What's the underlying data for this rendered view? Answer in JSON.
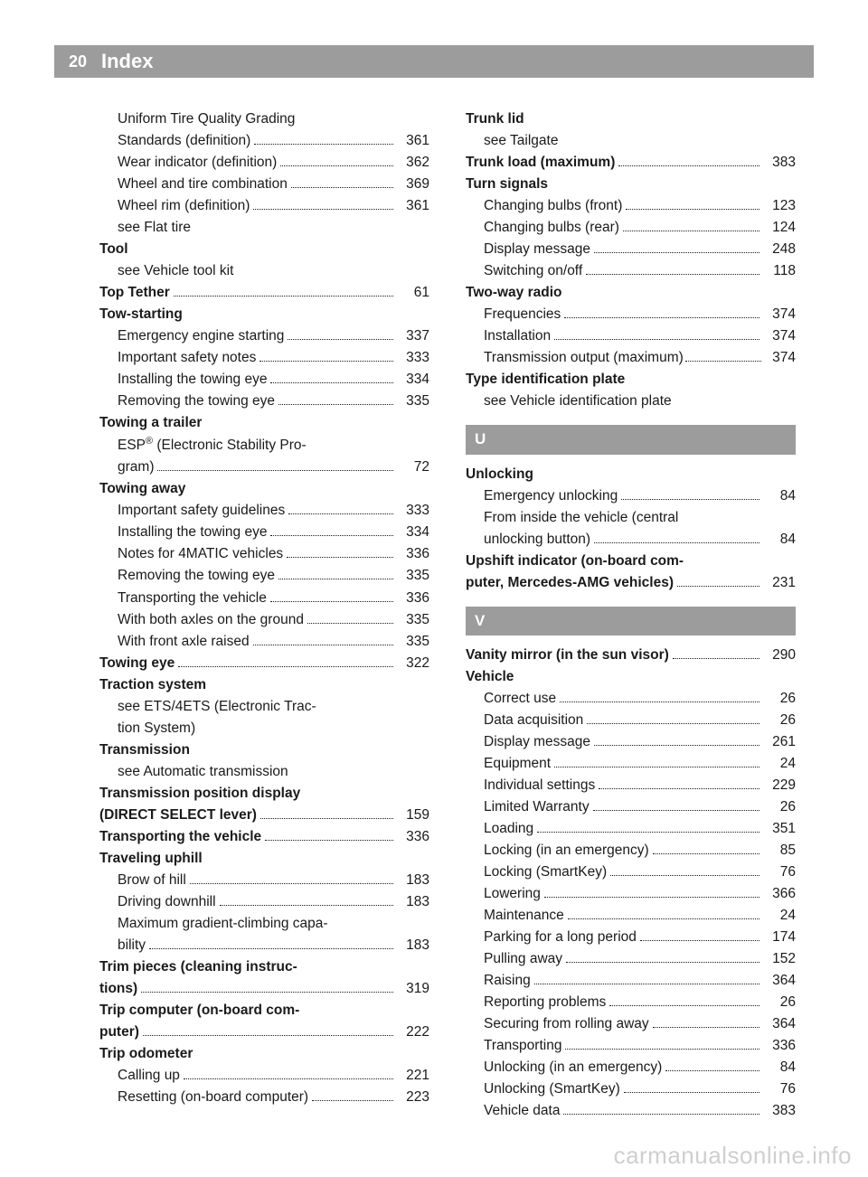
{
  "header": {
    "page_number": "20",
    "title": "Index"
  },
  "watermark": "carmanualsonline.info",
  "left": [
    {
      "label": "Uniform Tire Quality Grading",
      "sub": true,
      "nolead": true
    },
    {
      "label": "Standards (definition)",
      "page": "361",
      "sub": true
    },
    {
      "label": "Wear indicator (definition)",
      "page": "362",
      "sub": true
    },
    {
      "label": "Wheel and tire combination",
      "page": "369",
      "sub": true
    },
    {
      "label": "Wheel rim (definition)",
      "page": "361",
      "sub": true
    },
    {
      "label": "see Flat tire",
      "sub": true,
      "nolead": true
    },
    {
      "label": "Tool",
      "bold": true,
      "nolead": true
    },
    {
      "label": "see Vehicle tool kit",
      "sub": true,
      "nolead": true
    },
    {
      "label": "Top Tether",
      "bold": true,
      "page": "61"
    },
    {
      "label": "Tow-starting",
      "bold": true,
      "nolead": true
    },
    {
      "label": "Emergency engine starting",
      "page": "337",
      "sub": true
    },
    {
      "label": "Important safety notes",
      "page": "333",
      "sub": true
    },
    {
      "label": "Installing the towing eye",
      "page": "334",
      "sub": true
    },
    {
      "label": "Removing the towing eye",
      "page": "335",
      "sub": true
    },
    {
      "label": "Towing a trailer",
      "bold": true,
      "nolead": true
    },
    {
      "label": "ESP® (Electronic Stability Pro-",
      "sub": true,
      "nolead": true,
      "html": true
    },
    {
      "label": "gram)",
      "page": "72",
      "sub": true
    },
    {
      "label": "Towing away",
      "bold": true,
      "nolead": true
    },
    {
      "label": "Important safety guidelines",
      "page": "333",
      "sub": true
    },
    {
      "label": "Installing the towing eye",
      "page": "334",
      "sub": true
    },
    {
      "label": "Notes for 4MATIC vehicles",
      "page": "336",
      "sub": true
    },
    {
      "label": "Removing the towing eye",
      "page": "335",
      "sub": true
    },
    {
      "label": "Transporting the vehicle",
      "page": "336",
      "sub": true
    },
    {
      "label": "With both axles on the ground",
      "page": "335",
      "sub": true
    },
    {
      "label": "With front axle raised",
      "page": "335",
      "sub": true
    },
    {
      "label": "Towing eye",
      "bold": true,
      "page": "322"
    },
    {
      "label": "Traction system",
      "bold": true,
      "nolead": true
    },
    {
      "label": "see ETS/4ETS (Electronic Trac-",
      "sub": true,
      "nolead": true
    },
    {
      "label": "tion System)",
      "sub": true,
      "nolead": true
    },
    {
      "label": "Transmission",
      "bold": true,
      "nolead": true
    },
    {
      "label": "see Automatic transmission",
      "sub": true,
      "nolead": true
    },
    {
      "label": "Transmission position display",
      "bold": true,
      "nolead": true
    },
    {
      "label": "(DIRECT SELECT lever)",
      "bold": true,
      "page": "159"
    },
    {
      "label": "Transporting the vehicle",
      "bold": true,
      "page": "336"
    },
    {
      "label": "Traveling uphill",
      "bold": true,
      "nolead": true
    },
    {
      "label": "Brow of hill",
      "page": "183",
      "sub": true
    },
    {
      "label": "Driving downhill",
      "page": "183",
      "sub": true
    },
    {
      "label": "Maximum gradient-climbing capa-",
      "sub": true,
      "nolead": true
    },
    {
      "label": "bility",
      "page": "183",
      "sub": true
    },
    {
      "label": "Trim pieces (cleaning instruc-",
      "bold": true,
      "nolead": true
    },
    {
      "label": "tions)",
      "bold": true,
      "page": "319"
    },
    {
      "label": "Trip computer (on-board com-",
      "bold": true,
      "nolead": true
    },
    {
      "label": "puter)",
      "bold": true,
      "page": "222"
    },
    {
      "label": "Trip odometer",
      "bold": true,
      "nolead": true
    },
    {
      "label": "Calling up",
      "page": "221",
      "sub": true
    },
    {
      "label": "Resetting (on-board computer)",
      "page": "223",
      "sub": true
    }
  ],
  "right": [
    {
      "label": "Trunk lid",
      "bold": true,
      "nolead": true
    },
    {
      "label": "see Tailgate",
      "sub": true,
      "nolead": true
    },
    {
      "label": "Trunk load (maximum)",
      "bold": true,
      "page": "383"
    },
    {
      "label": "Turn signals",
      "bold": true,
      "nolead": true
    },
    {
      "label": "Changing bulbs (front)",
      "page": "123",
      "sub": true
    },
    {
      "label": "Changing bulbs (rear)",
      "page": "124",
      "sub": true
    },
    {
      "label": "Display message",
      "page": "248",
      "sub": true
    },
    {
      "label": "Switching on/off",
      "page": "118",
      "sub": true
    },
    {
      "label": "Two-way radio",
      "bold": true,
      "nolead": true
    },
    {
      "label": "Frequencies",
      "page": "374",
      "sub": true
    },
    {
      "label": "Installation",
      "page": "374",
      "sub": true
    },
    {
      "label": "Transmission output (maximum)",
      "page": "374",
      "sub": true,
      "tight": true
    },
    {
      "label": "Type identification plate",
      "bold": true,
      "nolead": true
    },
    {
      "label": "see Vehicle identification plate",
      "sub": true,
      "nolead": true
    },
    {
      "section": "U"
    },
    {
      "label": "Unlocking",
      "bold": true,
      "nolead": true
    },
    {
      "label": "Emergency unlocking",
      "page": "84",
      "sub": true
    },
    {
      "label": "From inside the vehicle (central",
      "sub": true,
      "nolead": true
    },
    {
      "label": "unlocking button)",
      "page": "84",
      "sub": true
    },
    {
      "label": "Upshift indicator (on-board com-",
      "bold": true,
      "nolead": true
    },
    {
      "label": "puter, Mercedes-AMG vehicles)",
      "bold": true,
      "page": "231"
    },
    {
      "section": "V"
    },
    {
      "label": "Vanity mirror (in the sun visor)",
      "bold": true,
      "page": "290"
    },
    {
      "label": "Vehicle",
      "bold": true,
      "nolead": true
    },
    {
      "label": "Correct use",
      "page": "26",
      "sub": true
    },
    {
      "label": "Data acquisition",
      "page": "26",
      "sub": true
    },
    {
      "label": "Display message",
      "page": "261",
      "sub": true
    },
    {
      "label": "Equipment",
      "page": "24",
      "sub": true
    },
    {
      "label": "Individual settings",
      "page": "229",
      "sub": true
    },
    {
      "label": "Limited Warranty",
      "page": "26",
      "sub": true
    },
    {
      "label": "Loading",
      "page": "351",
      "sub": true
    },
    {
      "label": "Locking (in an emergency)",
      "page": "85",
      "sub": true
    },
    {
      "label": "Locking (SmartKey)",
      "page": "76",
      "sub": true
    },
    {
      "label": "Lowering",
      "page": "366",
      "sub": true
    },
    {
      "label": "Maintenance",
      "page": "24",
      "sub": true
    },
    {
      "label": "Parking for a long period",
      "page": "174",
      "sub": true
    },
    {
      "label": "Pulling away",
      "page": "152",
      "sub": true
    },
    {
      "label": "Raising",
      "page": "364",
      "sub": true
    },
    {
      "label": "Reporting problems",
      "page": "26",
      "sub": true
    },
    {
      "label": "Securing from rolling away",
      "page": "364",
      "sub": true
    },
    {
      "label": "Transporting",
      "page": "336",
      "sub": true
    },
    {
      "label": "Unlocking (in an emergency)",
      "page": "84",
      "sub": true
    },
    {
      "label": "Unlocking (SmartKey)",
      "page": "76",
      "sub": true
    },
    {
      "label": "Vehicle data",
      "page": "383",
      "sub": true
    }
  ]
}
